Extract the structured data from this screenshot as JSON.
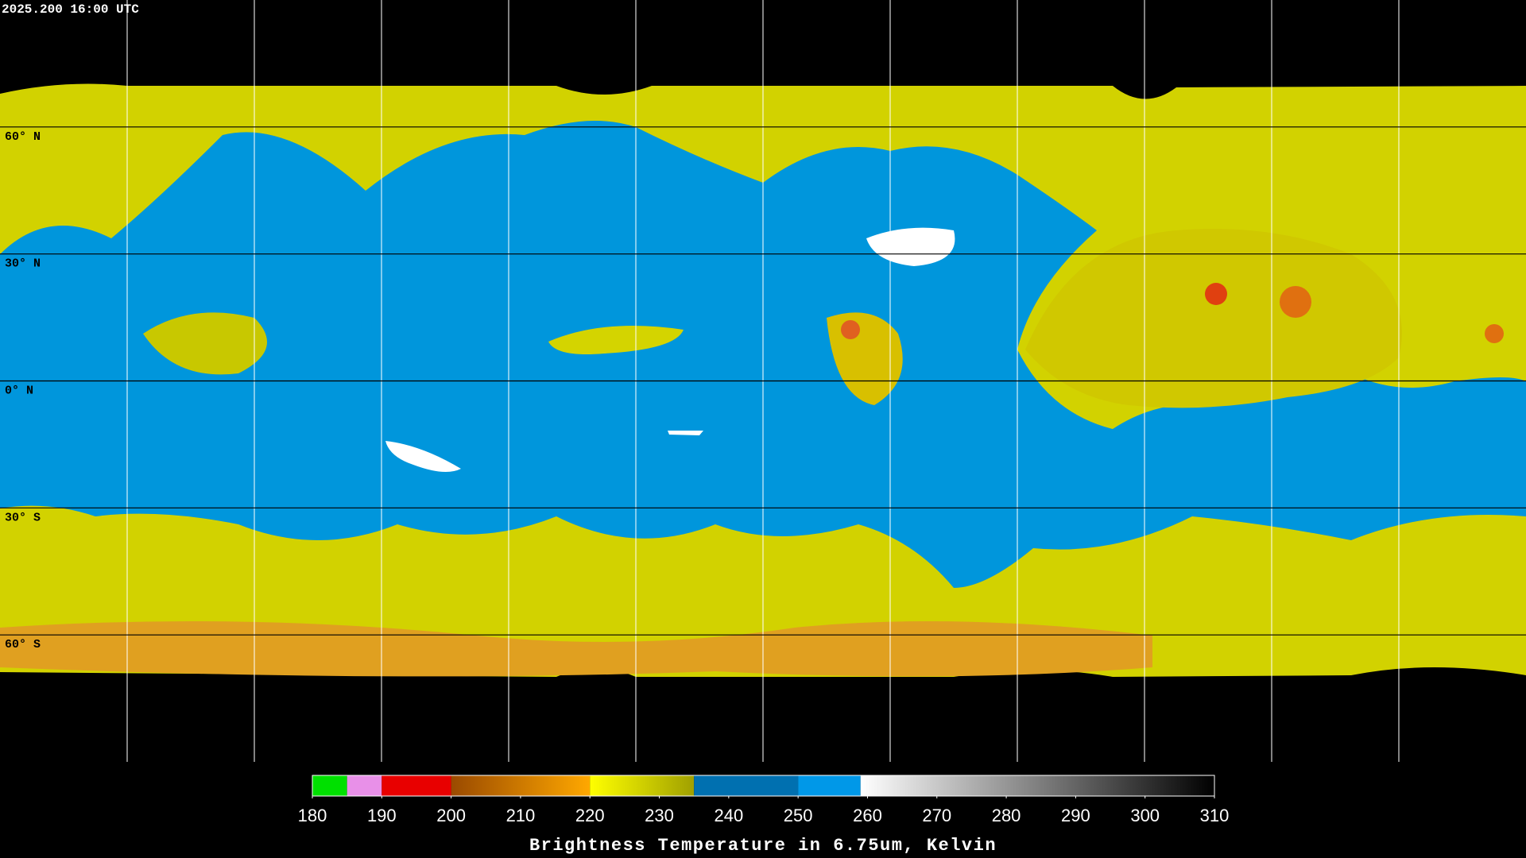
{
  "timestamp": "2025.200 16:00 UTC",
  "lat_lines": [
    {
      "value": 60,
      "label": "60° N"
    },
    {
      "value": 30,
      "label": "30° N"
    },
    {
      "value": 0,
      "label": "0° N"
    },
    {
      "value": -30,
      "label": "30° S"
    },
    {
      "value": -60,
      "label": "60° S"
    }
  ],
  "colorbar": {
    "lim": [
      180,
      310
    ],
    "ticks": [
      180,
      190,
      200,
      210,
      220,
      230,
      240,
      250,
      260,
      270,
      280,
      290,
      300,
      310
    ],
    "label": "Brightness Temperature in 6.75um, Kelvin",
    "segments": [
      {
        "from": 180,
        "to": 185,
        "colors": [
          "#00e000",
          "#00e000"
        ]
      },
      {
        "from": 185,
        "to": 190,
        "colors": [
          "#e890e8",
          "#e890e8"
        ]
      },
      {
        "from": 190,
        "to": 200,
        "colors": [
          "#e80000",
          "#e80000"
        ]
      },
      {
        "from": 200,
        "to": 220,
        "colors": [
          "#9a4a00",
          "#ffa800"
        ]
      },
      {
        "from": 220,
        "to": 235,
        "colors": [
          "#ffff00",
          "#a0a000"
        ]
      },
      {
        "from": 235,
        "to": 250,
        "colors": [
          "#0070b0",
          "#0070b0"
        ]
      },
      {
        "from": 250,
        "to": 259,
        "colors": [
          "#0098e8",
          "#0098e8"
        ]
      },
      {
        "from": 259,
        "to": 310,
        "colors": [
          "#ffffff",
          "#000000"
        ]
      }
    ]
  }
}
